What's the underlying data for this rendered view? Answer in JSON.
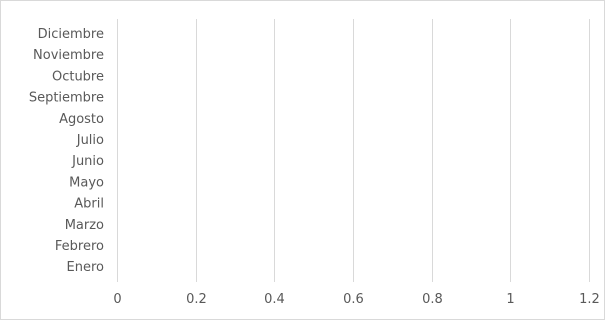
{
  "chart_data": {
    "type": "bar",
    "orientation": "horizontal",
    "categories": [
      "Enero",
      "Febrero",
      "Marzo",
      "Abril",
      "Mayo",
      "Junio",
      "Julio",
      "Agosto",
      "Septiembre",
      "Octubre",
      "Noviembre",
      "Diciembre"
    ],
    "series": [
      {
        "values": [
          0,
          0,
          0,
          0,
          0,
          0,
          0,
          0,
          0,
          0,
          0,
          0
        ]
      }
    ],
    "x_ticks": [
      "0",
      "0.2",
      "0.4",
      "0.6",
      "0.8",
      "1",
      "1.2"
    ],
    "xlim": [
      0,
      1.2
    ],
    "title": "",
    "xlabel": "",
    "ylabel": "",
    "grid": "vertical",
    "legend": "none",
    "colors": {
      "gridline": "#d9d9d9",
      "text": "#595959",
      "border": "#d9d9d9"
    }
  }
}
